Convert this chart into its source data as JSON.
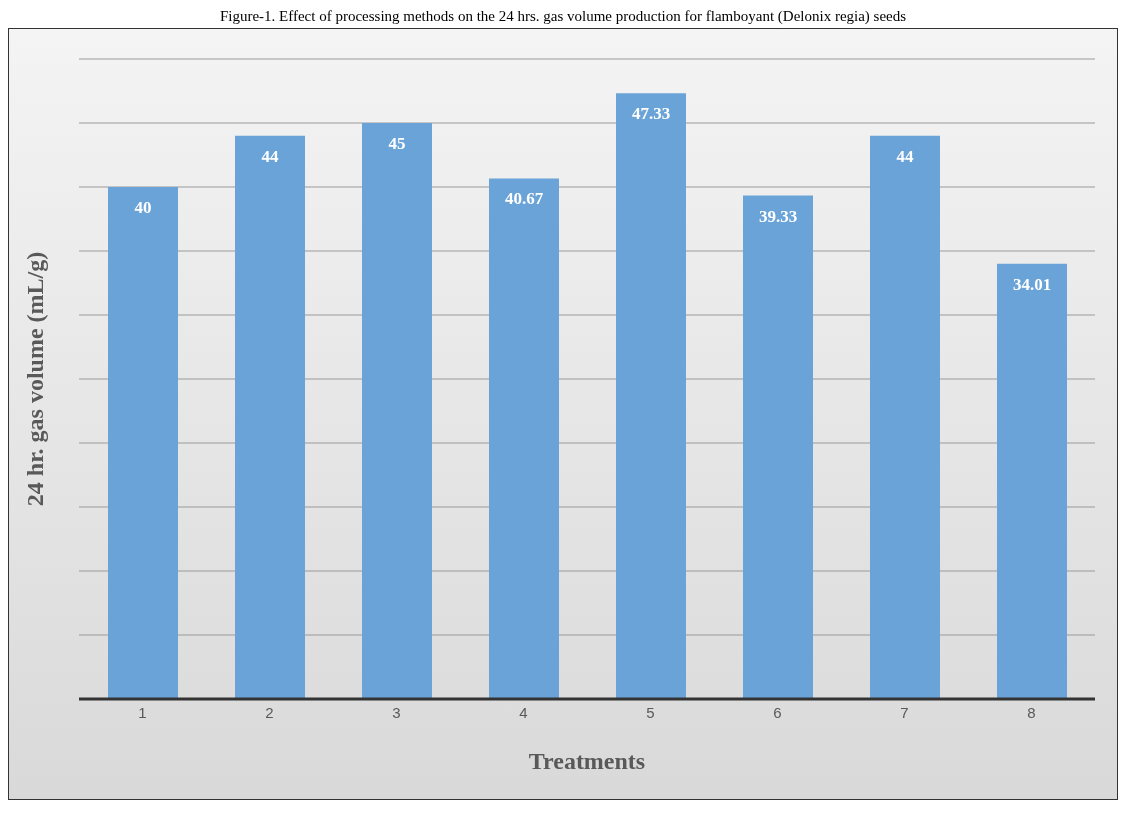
{
  "chart_data": {
    "type": "bar",
    "title": "Figure-1. Effect of processing methods on the 24 hrs. gas volume production for flamboyant (Delonix regia) seeds",
    "xlabel": "Treatments",
    "ylabel": "24 hr. gas volume (mL/g)",
    "categories": [
      "1",
      "2",
      "3",
      "4",
      "5",
      "6",
      "7",
      "8"
    ],
    "values": [
      40,
      44,
      45,
      40.67,
      47.33,
      39.33,
      44,
      34.01
    ],
    "color": "#6aa3d8",
    "data_labels": true,
    "ylim": [
      0,
      50
    ],
    "grid": "y",
    "tick_labels": "x"
  }
}
